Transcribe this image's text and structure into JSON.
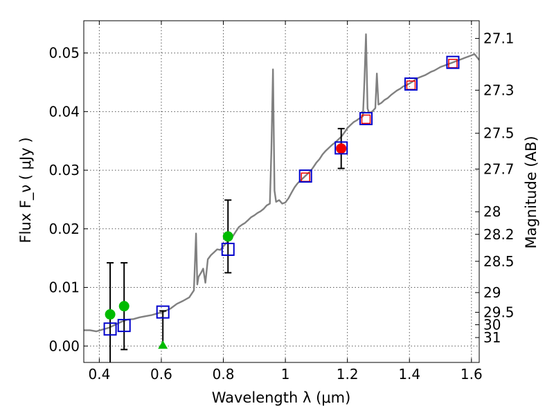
{
  "chart_data": {
    "type": "scatter",
    "xlabel": "Wavelength  λ (μm)",
    "ylabel": "Flux  F_ν  ( μJy )",
    "ylabel_right": "Magnitude (AB)",
    "xlim": [
      0.35,
      1.625
    ],
    "ylim": [
      -0.0028,
      0.0555
    ],
    "grid": true,
    "x_ticks": [
      {
        "value": 0.4,
        "label": "0.4"
      },
      {
        "value": 0.6,
        "label": "0.6"
      },
      {
        "value": 0.8,
        "label": "0.8"
      },
      {
        "value": 1.0,
        "label": "1"
      },
      {
        "value": 1.2,
        "label": "1.2"
      },
      {
        "value": 1.4,
        "label": "1.4"
      },
      {
        "value": 1.6,
        "label": "1.6"
      }
    ],
    "y_ticks": [
      {
        "value": 0.0,
        "label": "0.00"
      },
      {
        "value": 0.01,
        "label": "0.01"
      },
      {
        "value": 0.02,
        "label": "0.02"
      },
      {
        "value": 0.03,
        "label": "0.03"
      },
      {
        "value": 0.04,
        "label": "0.04"
      },
      {
        "value": 0.05,
        "label": "0.05"
      }
    ],
    "mag_ticks": [
      {
        "mag": 27.1,
        "label": "27.1"
      },
      {
        "mag": 27.3,
        "label": "27.3"
      },
      {
        "mag": 27.5,
        "label": "27.5"
      },
      {
        "mag": 27.7,
        "label": "27.7"
      },
      {
        "mag": 28,
        "label": "28"
      },
      {
        "mag": 28.2,
        "label": "28.2"
      },
      {
        "mag": 28.5,
        "label": "28.5"
      },
      {
        "mag": 29,
        "label": "29"
      },
      {
        "mag": 29.5,
        "label": "29.5"
      },
      {
        "mag": 30,
        "label": "30"
      },
      {
        "mag": 31,
        "label": "31"
      }
    ],
    "colors": {
      "spectrum": "#808080",
      "model": "#0000cc",
      "green": "#00bb00",
      "red": "#ee0000",
      "error": "#000000",
      "grid": "#555555"
    },
    "series": [
      {
        "name": "model spectrum",
        "kind": "line",
        "x": [
          0.35,
          0.37,
          0.39,
          0.41,
          0.43,
          0.45,
          0.47,
          0.49,
          0.51,
          0.53,
          0.55,
          0.57,
          0.59,
          0.61,
          0.63,
          0.65,
          0.67,
          0.69,
          0.705,
          0.712,
          0.716,
          0.72,
          0.728,
          0.735,
          0.742,
          0.75,
          0.76,
          0.77,
          0.78,
          0.79,
          0.8,
          0.81,
          0.82,
          0.83,
          0.84,
          0.85,
          0.86,
          0.87,
          0.88,
          0.89,
          0.9,
          0.91,
          0.92,
          0.93,
          0.94,
          0.95,
          0.955,
          0.96,
          0.965,
          0.97,
          0.98,
          0.99,
          1.0,
          1.01,
          1.02,
          1.03,
          1.04,
          1.05,
          1.06,
          1.07,
          1.08,
          1.09,
          1.1,
          1.11,
          1.12,
          1.13,
          1.14,
          1.15,
          1.16,
          1.17,
          1.18,
          1.19,
          1.2,
          1.21,
          1.22,
          1.23,
          1.24,
          1.25,
          1.255,
          1.26,
          1.265,
          1.27,
          1.28,
          1.29,
          1.295,
          1.3,
          1.31,
          1.32,
          1.33,
          1.34,
          1.35,
          1.36,
          1.37,
          1.38,
          1.39,
          1.4,
          1.41,
          1.42,
          1.43,
          1.44,
          1.45,
          1.46,
          1.47,
          1.48,
          1.49,
          1.5,
          1.51,
          1.52,
          1.53,
          1.54,
          1.55,
          1.56,
          1.57,
          1.58,
          1.59,
          1.6,
          1.61,
          1.625
        ],
        "y": [
          0.0027,
          0.0027,
          0.0025,
          0.0028,
          0.0031,
          0.0036,
          0.0041,
          0.0045,
          0.0046,
          0.0049,
          0.0051,
          0.0053,
          0.0056,
          0.0059,
          0.0064,
          0.0072,
          0.0077,
          0.0083,
          0.0095,
          0.0192,
          0.0105,
          0.0118,
          0.0125,
          0.0132,
          0.0108,
          0.0148,
          0.0155,
          0.016,
          0.0165,
          0.0164,
          0.017,
          0.0176,
          0.0183,
          0.0187,
          0.0195,
          0.0203,
          0.0207,
          0.021,
          0.0215,
          0.022,
          0.0223,
          0.0227,
          0.023,
          0.0234,
          0.024,
          0.0243,
          0.0335,
          0.0472,
          0.0265,
          0.0246,
          0.0249,
          0.0243,
          0.0245,
          0.0252,
          0.0262,
          0.0271,
          0.0278,
          0.0283,
          0.0288,
          0.0293,
          0.0298,
          0.0305,
          0.0313,
          0.0319,
          0.0327,
          0.0333,
          0.0338,
          0.0343,
          0.0347,
          0.0352,
          0.0357,
          0.0364,
          0.0372,
          0.0377,
          0.0382,
          0.0385,
          0.0389,
          0.0392,
          0.0454,
          0.0532,
          0.0405,
          0.0398,
          0.04,
          0.0406,
          0.0465,
          0.0412,
          0.0415,
          0.042,
          0.0423,
          0.0428,
          0.0432,
          0.0436,
          0.0439,
          0.0443,
          0.0445,
          0.0448,
          0.0451,
          0.0455,
          0.0458,
          0.046,
          0.0462,
          0.0465,
          0.0468,
          0.047,
          0.0473,
          0.0476,
          0.0478,
          0.048,
          0.0482,
          0.0484,
          0.0486,
          0.0488,
          0.049,
          0.0492,
          0.0494,
          0.0496,
          0.0498,
          0.0488
        ]
      },
      {
        "name": "model photometry",
        "kind": "open-square",
        "x": [
          0.435,
          0.48,
          0.605,
          0.815,
          1.065,
          1.18,
          1.26,
          1.405,
          1.54
        ],
        "y": [
          0.0029,
          0.0035,
          0.0058,
          0.0165,
          0.029,
          0.0338,
          0.0388,
          0.0447,
          0.0484
        ]
      },
      {
        "name": "detected photometry",
        "kind": "filled-circle",
        "points": [
          {
            "x": 0.435,
            "y": 0.0054,
            "err": 0.0088,
            "color": "green"
          },
          {
            "x": 0.48,
            "y": 0.0068,
            "err": 0.0074,
            "color": "green"
          },
          {
            "x": 0.815,
            "y": 0.0187,
            "err": 0.0062,
            "color": "green"
          },
          {
            "x": 1.18,
            "y": 0.0337,
            "err": 0.0034,
            "color": "red"
          }
        ]
      },
      {
        "name": "upper limit",
        "kind": "triangle",
        "points": [
          {
            "x": 0.605,
            "y": 0.0,
            "upper": 0.006,
            "color": "green"
          }
        ]
      },
      {
        "name": "measured fluxes",
        "kind": "small-open-square",
        "x": [
          1.065,
          1.26,
          1.405,
          1.54
        ],
        "y": [
          0.0288,
          0.0387,
          0.0445,
          0.0482
        ]
      }
    ]
  }
}
